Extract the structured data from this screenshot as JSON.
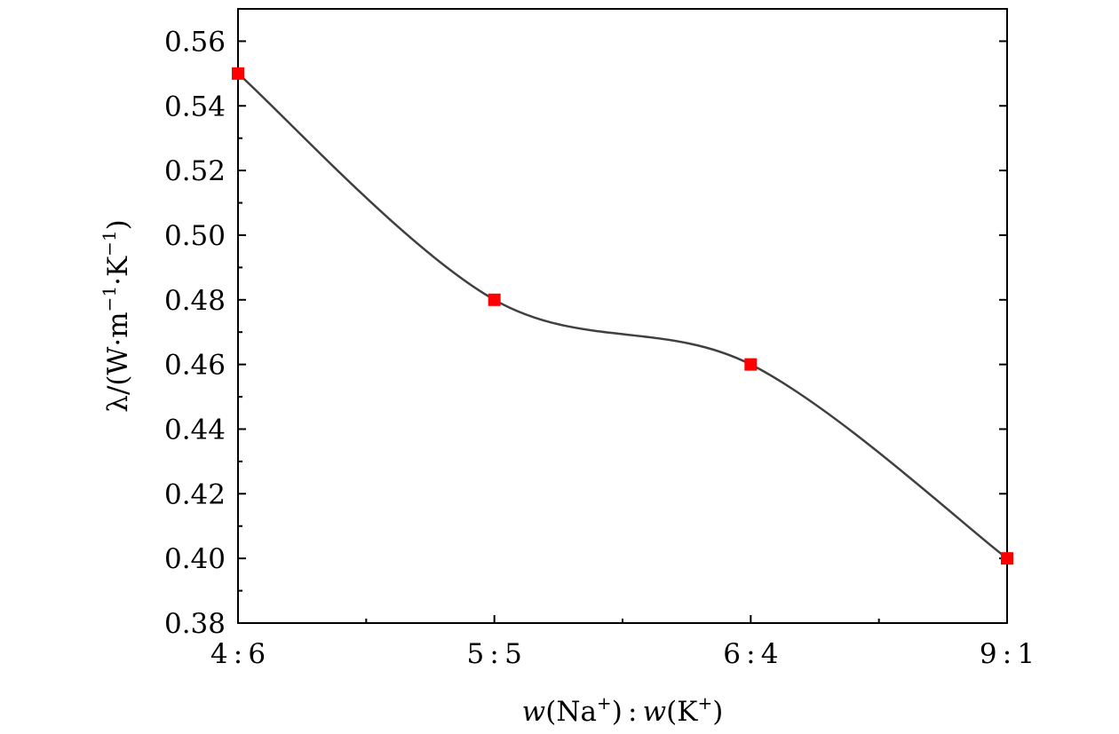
{
  "chart_data": {
    "type": "line",
    "categories": [
      "4 : 6",
      "5 : 5",
      "6 : 4",
      "9 : 1"
    ],
    "series": [
      {
        "values": [
          0.55,
          0.48,
          0.46,
          0.4
        ]
      }
    ],
    "xlabel": "w(Na⁺) : w(K⁺)",
    "ylabel": "λ/(W·m⁻¹·K⁻¹)",
    "ylim": [
      0.38,
      0.57
    ],
    "yticks": [
      "0.38",
      "0.40",
      "0.42",
      "0.44",
      "0.46",
      "0.48",
      "0.50",
      "0.52",
      "0.54",
      "0.56"
    ],
    "grid": false,
    "marker": "square",
    "colors": {
      "line": "#404040",
      "marker": "#ff0000",
      "axis": "#000000"
    }
  }
}
